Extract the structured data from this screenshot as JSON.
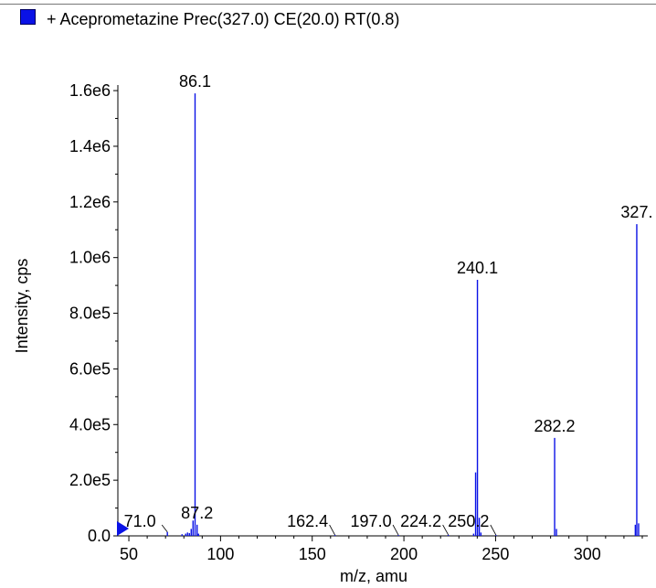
{
  "legend": {
    "label": "+ Aceprometazine Prec(327.0) CE(20.0) RT(0.8)",
    "swatch_color": "#0a12e6"
  },
  "chart_data": {
    "type": "bar",
    "xlabel": "m/z, amu",
    "ylabel": "Intensity, cps",
    "xlim": [
      44,
      333
    ],
    "ylim": [
      0,
      1620000
    ],
    "series_color": "#0a12e6",
    "x_ticks": [
      {
        "value": 50,
        "label": "50"
      },
      {
        "value": 100,
        "label": "100"
      },
      {
        "value": 150,
        "label": "150"
      },
      {
        "value": 200,
        "label": "200"
      },
      {
        "value": 250,
        "label": "250"
      },
      {
        "value": 300,
        "label": "300"
      }
    ],
    "y_ticks": [
      {
        "value": 0,
        "label": "0.0"
      },
      {
        "value": 200000,
        "label": "2.0e5"
      },
      {
        "value": 400000,
        "label": "4.0e5"
      },
      {
        "value": 600000,
        "label": "6.0e5"
      },
      {
        "value": 800000,
        "label": "8.0e5"
      },
      {
        "value": 1000000,
        "label": "1.0e6"
      },
      {
        "value": 1200000,
        "label": "1.2e6"
      },
      {
        "value": 1400000,
        "label": "1.4e6"
      },
      {
        "value": 1600000,
        "label": "1.6e6"
      }
    ],
    "peaks": [
      {
        "mz": 71.0,
        "intensity": 14000
      },
      {
        "mz": 79.0,
        "intensity": 6000
      },
      {
        "mz": 81.0,
        "intensity": 8000
      },
      {
        "mz": 82.0,
        "intensity": 12000
      },
      {
        "mz": 83.0,
        "intensity": 10000
      },
      {
        "mz": 84.0,
        "intensity": 25000
      },
      {
        "mz": 85.0,
        "intensity": 55000
      },
      {
        "mz": 86.1,
        "intensity": 1590000
      },
      {
        "mz": 87.2,
        "intensity": 40000
      },
      {
        "mz": 88.0,
        "intensity": 8000
      },
      {
        "mz": 162.4,
        "intensity": 3000
      },
      {
        "mz": 197.0,
        "intensity": 3000
      },
      {
        "mz": 224.2,
        "intensity": 4000
      },
      {
        "mz": 238.0,
        "intensity": 8000
      },
      {
        "mz": 239.1,
        "intensity": 228000
      },
      {
        "mz": 240.1,
        "intensity": 920000
      },
      {
        "mz": 241.1,
        "intensity": 65000
      },
      {
        "mz": 242.0,
        "intensity": 12000
      },
      {
        "mz": 250.2,
        "intensity": 3000
      },
      {
        "mz": 282.2,
        "intensity": 352000
      },
      {
        "mz": 283.2,
        "intensity": 25000
      },
      {
        "mz": 326.2,
        "intensity": 40000
      },
      {
        "mz": 327.0,
        "intensity": 1120000
      },
      {
        "mz": 328.0,
        "intensity": 45000
      }
    ],
    "annotations": [
      {
        "text": "86.1",
        "mz": 86.1,
        "intensity": 1590000,
        "leader": false
      },
      {
        "text": "240.1",
        "mz": 240.1,
        "intensity": 920000,
        "leader": false
      },
      {
        "text": "282.2",
        "mz": 282.2,
        "intensity": 352000,
        "leader": false
      },
      {
        "text": "327.",
        "mz": 327.0,
        "intensity": 1120000,
        "leader": false
      },
      {
        "text": "71.0",
        "mz": 71.0,
        "intensity": 14000,
        "leader": true
      },
      {
        "text": "87.2",
        "mz": 87.2,
        "intensity": 40000,
        "leader": false
      },
      {
        "text": "162.4",
        "mz": 162.4,
        "intensity": 3000,
        "leader": true
      },
      {
        "text": "197.0",
        "mz": 197.0,
        "intensity": 3000,
        "leader": true
      },
      {
        "text": "224.2",
        "mz": 224.2,
        "intensity": 4000,
        "leader": true
      },
      {
        "text": "250.2",
        "mz": 250.2,
        "intensity": 3000,
        "leader": true
      }
    ]
  }
}
